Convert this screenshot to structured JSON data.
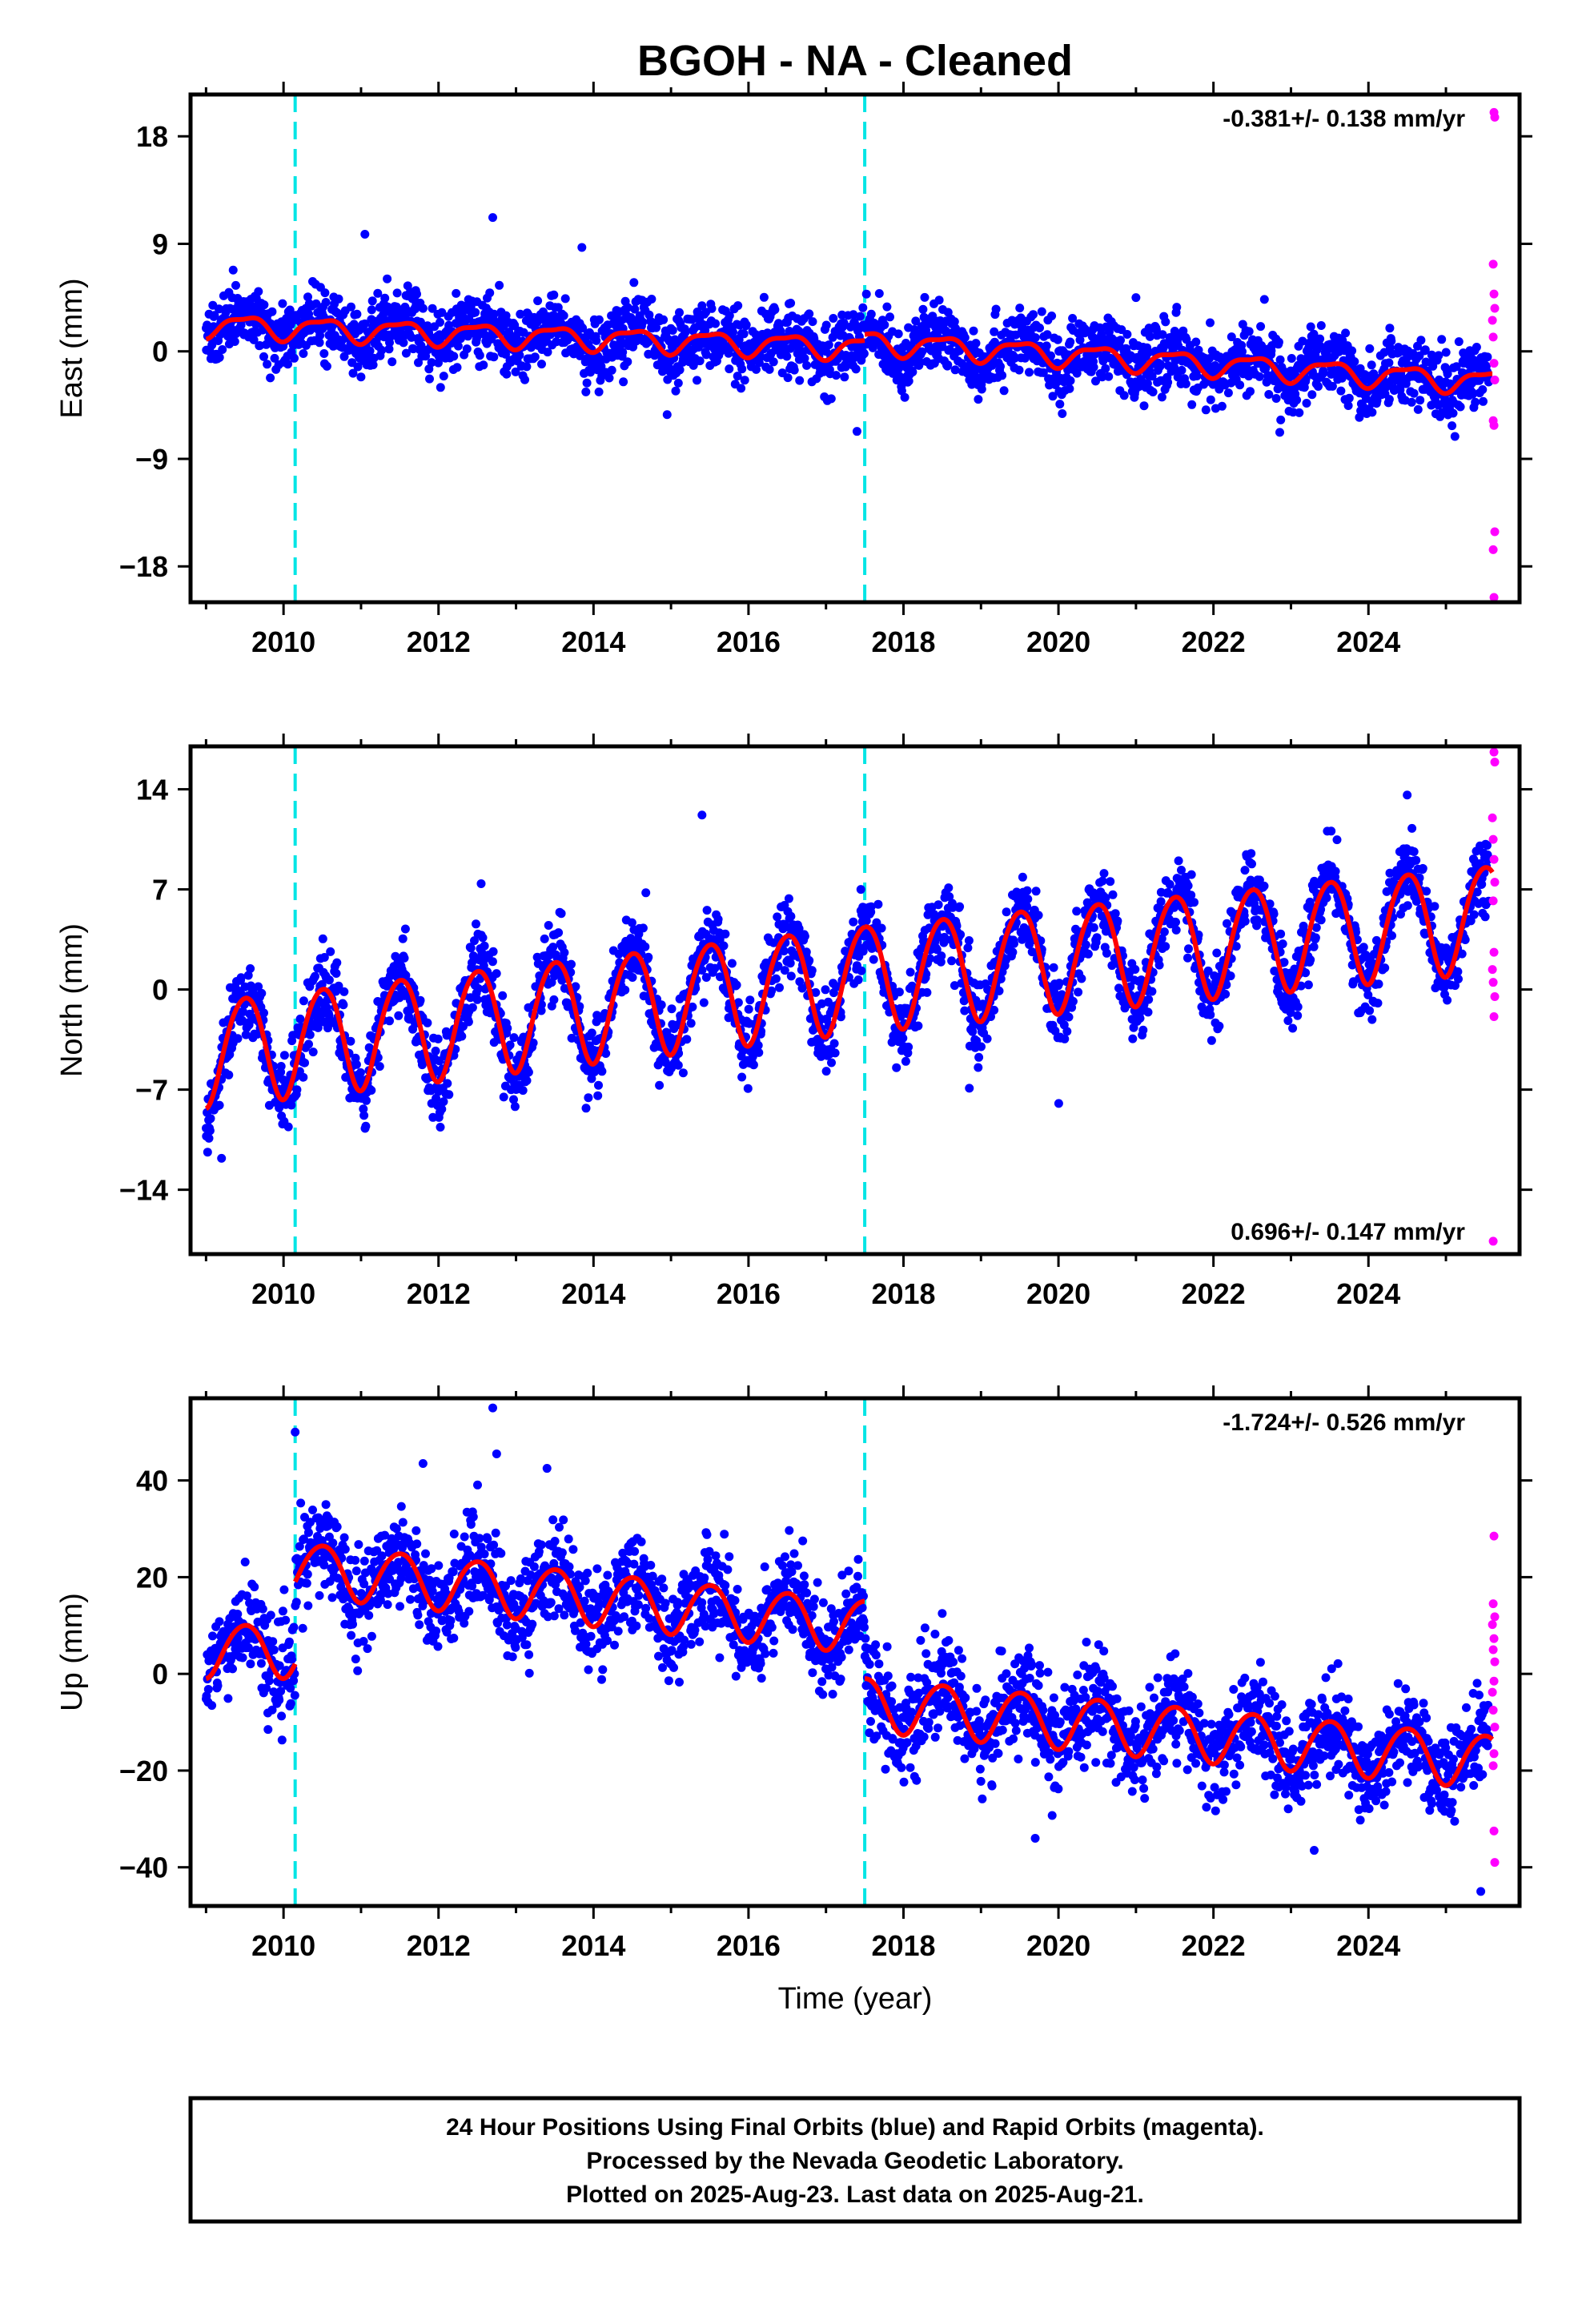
{
  "figure": {
    "title": "BGOH  - NA - Cleaned",
    "xlabel": "Time (year)",
    "footer": [
      "24 Hour Positions Using Final Orbits (blue) and Rapid Orbits (magenta).",
      "Processed by the Nevada Geodetic Laboratory.",
      "Plotted on 2025-Aug-23. Last data on 2025-Aug-21."
    ]
  },
  "colors": {
    "final_orbits": "#0000ff",
    "rapid_orbits": "#ff00ff",
    "model": "#ff0000",
    "event_lines": "#00e5e5",
    "frame": "#000000"
  },
  "chart_data": [
    {
      "type": "scatter",
      "component": "east",
      "ylabel": "East (mm)",
      "rate_label": "-0.381+/- 0.138 mm/yr",
      "rate_position": "top-right",
      "xlim": [
        2008.8,
        2025.95
      ],
      "ylim": [
        -21,
        21.5
      ],
      "xticks": [
        2010,
        2012,
        2014,
        2016,
        2018,
        2020,
        2022,
        2024
      ],
      "yticks": [
        18,
        9,
        0,
        -9,
        -18
      ],
      "ytick_labels": [
        "18",
        "9",
        "0",
        "−9",
        "−18"
      ],
      "event_lines": [
        2010.15,
        2017.5
      ],
      "model": {
        "segments": [
          {
            "x": [
              2009.0,
              2017.5
            ],
            "y_start": 2.2,
            "y_end": 0.3
          },
          {
            "x": [
              2017.5,
              2025.6
            ],
            "y_start": 0.8,
            "y_end": -2.6
          }
        ],
        "annual_amplitude": 0.9,
        "semiannual_amplitude": 0.3
      },
      "final_orbits_cloud": {
        "x": [
          2009.0,
          2025.55
        ],
        "scatter_sd": 1.4
      },
      "final_orbits_outliers": [
        {
          "x": 2012.7,
          "y": 11.2
        },
        {
          "x": 2011.05,
          "y": 9.8
        },
        {
          "x": 2013.85,
          "y": 8.7
        },
        {
          "x": 2014.95,
          "y": -5.3
        },
        {
          "x": 2017.4,
          "y": -6.7
        },
        {
          "x": 2009.35,
          "y": 6.8
        },
        {
          "x": 2021.0,
          "y": 4.5
        }
      ],
      "rapid_orbits": [
        {
          "x": 2025.62,
          "y": 20.0
        },
        {
          "x": 2025.63,
          "y": 19.6
        },
        {
          "x": 2025.61,
          "y": 7.3
        },
        {
          "x": 2025.62,
          "y": 4.8
        },
        {
          "x": 2025.63,
          "y": 3.6
        },
        {
          "x": 2025.6,
          "y": 2.6
        },
        {
          "x": 2025.61,
          "y": 1.2
        },
        {
          "x": 2025.62,
          "y": -1.0
        },
        {
          "x": 2025.63,
          "y": -2.4
        },
        {
          "x": 2025.61,
          "y": -5.8
        },
        {
          "x": 2025.62,
          "y": -6.2
        },
        {
          "x": 2025.63,
          "y": -15.1
        },
        {
          "x": 2025.61,
          "y": -16.6
        },
        {
          "x": 2025.62,
          "y": -20.6
        }
      ]
    },
    {
      "type": "scatter",
      "component": "north",
      "ylabel": "North (mm)",
      "rate_label": "0.696+/- 0.147 mm/yr",
      "rate_position": "bottom-right",
      "xlim": [
        2008.8,
        2025.95
      ],
      "ylim": [
        -18.5,
        17
      ],
      "xticks": [
        2010,
        2012,
        2014,
        2016,
        2018,
        2020,
        2022,
        2024
      ],
      "yticks": [
        14,
        7,
        0,
        -7,
        -14
      ],
      "ytick_labels": [
        "14",
        "7",
        "0",
        "−7",
        "−14"
      ],
      "event_lines": [
        2010.15,
        2017.5
      ],
      "model": {
        "segments": [
          {
            "x": [
              2009.0,
              2017.5
            ],
            "y_start": -4.3,
            "y_end": 1.0
          },
          {
            "x": [
              2017.5,
              2025.6
            ],
            "y_start": 1.0,
            "y_end": 5.2
          }
        ],
        "annual_amplitude": 3.7,
        "semiannual_amplitude": 0.35
      },
      "final_orbits_cloud": {
        "x": [
          2009.0,
          2025.55
        ],
        "scatter_sd": 1.3
      },
      "final_orbits_outliers": [
        {
          "x": 2015.4,
          "y": 12.2
        },
        {
          "x": 2024.5,
          "y": 13.6
        },
        {
          "x": 2012.55,
          "y": 7.4
        },
        {
          "x": 2009.2,
          "y": -11.8
        },
        {
          "x": 2014.85,
          "y": -6.7
        },
        {
          "x": 2018.85,
          "y": -6.9
        },
        {
          "x": 2017.45,
          "y": 7.0
        }
      ],
      "rapid_orbits": [
        {
          "x": 2025.62,
          "y": 16.6
        },
        {
          "x": 2025.63,
          "y": 15.9
        },
        {
          "x": 2025.6,
          "y": 12.0
        },
        {
          "x": 2025.61,
          "y": 10.5
        },
        {
          "x": 2025.62,
          "y": 9.1
        },
        {
          "x": 2025.63,
          "y": 7.5
        },
        {
          "x": 2025.61,
          "y": 6.2
        },
        {
          "x": 2025.62,
          "y": 2.6
        },
        {
          "x": 2025.6,
          "y": 1.4
        },
        {
          "x": 2025.61,
          "y": 0.5
        },
        {
          "x": 2025.63,
          "y": -0.5
        },
        {
          "x": 2025.62,
          "y": -1.9
        },
        {
          "x": 2025.61,
          "y": -17.6
        }
      ]
    },
    {
      "type": "scatter",
      "component": "up",
      "ylabel": "Up (mm)",
      "rate_label": "-1.724+/- 0.526 mm/yr",
      "rate_position": "top-right",
      "xlim": [
        2008.8,
        2025.95
      ],
      "ylim": [
        -48,
        57
      ],
      "xticks": [
        2010,
        2012,
        2014,
        2016,
        2018,
        2020,
        2022,
        2024
      ],
      "yticks": [
        40,
        20,
        0,
        -20,
        -40
      ],
      "ytick_labels": [
        "40",
        "20",
        "0",
        "−20",
        "−40"
      ],
      "xlabel": "Time (year)",
      "event_lines": [
        2010.15,
        2017.5
      ],
      "model": {
        "segments": [
          {
            "x": [
              2009.0,
              2010.15
            ],
            "y_start": 5.0,
            "y_end": 5.0
          },
          {
            "x": [
              2010.15,
              2017.5
            ],
            "y_start": 22.0,
            "y_end": 10.0
          },
          {
            "x": [
              2017.5,
              2025.6
            ],
            "y_start": -6.0,
            "y_end": -18.0
          }
        ],
        "annual_amplitude": 5.5,
        "semiannual_amplitude": 0.5
      },
      "final_orbits_cloud": {
        "x": [
          2009.0,
          2025.55
        ],
        "scatter_sd": 4.8
      },
      "final_orbits_outliers": [
        {
          "x": 2012.7,
          "y": 55.0
        },
        {
          "x": 2010.15,
          "y": 50.0
        },
        {
          "x": 2012.75,
          "y": 45.5
        },
        {
          "x": 2013.4,
          "y": 42.5
        },
        {
          "x": 2011.8,
          "y": 43.5
        },
        {
          "x": 2009.8,
          "y": -11.5
        },
        {
          "x": 2019.7,
          "y": -34.0
        },
        {
          "x": 2023.3,
          "y": -36.5
        },
        {
          "x": 2025.45,
          "y": -45.0
        },
        {
          "x": 2016.7,
          "y": 27.5
        },
        {
          "x": 2018.5,
          "y": 12.5
        }
      ],
      "rapid_orbits": [
        {
          "x": 2025.62,
          "y": 28.5
        },
        {
          "x": 2025.61,
          "y": 14.5
        },
        {
          "x": 2025.63,
          "y": 11.8
        },
        {
          "x": 2025.6,
          "y": 10.2
        },
        {
          "x": 2025.62,
          "y": 7.3
        },
        {
          "x": 2025.61,
          "y": 5.0
        },
        {
          "x": 2025.63,
          "y": 2.5
        },
        {
          "x": 2025.62,
          "y": -1.5
        },
        {
          "x": 2025.6,
          "y": -3.8
        },
        {
          "x": 2025.61,
          "y": -7.5
        },
        {
          "x": 2025.63,
          "y": -11.0
        },
        {
          "x": 2025.62,
          "y": -16.5
        },
        {
          "x": 2025.61,
          "y": -19.0
        },
        {
          "x": 2025.62,
          "y": -32.5
        },
        {
          "x": 2025.63,
          "y": -39.0
        }
      ]
    }
  ]
}
